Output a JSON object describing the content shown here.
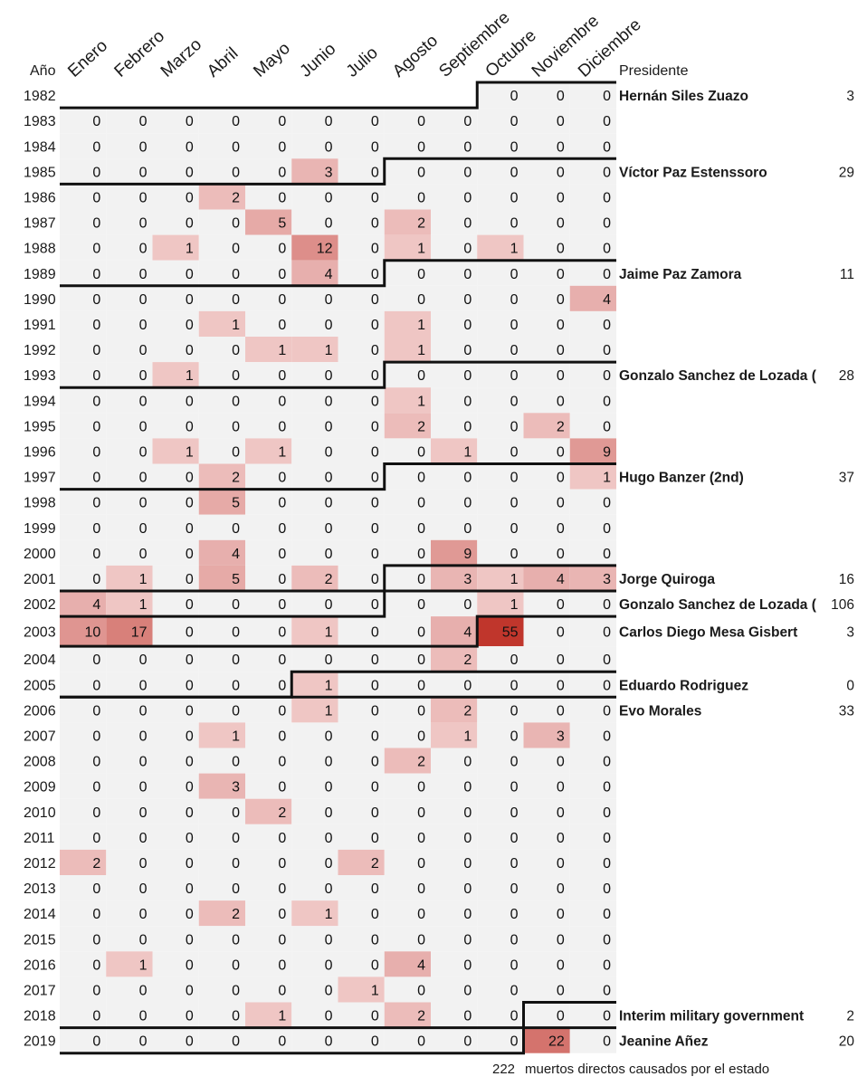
{
  "chart_data": {
    "type": "heatmap",
    "year_header": "Año",
    "president_header": "Presidente",
    "months": [
      "Enero",
      "Febrero",
      "Marzo",
      "Abril",
      "Mayo",
      "Junio",
      "Julio",
      "Agosto",
      "Septiembre",
      "Octubre",
      "Noviembre",
      "Diciembre"
    ],
    "years": [
      "1982",
      "1983",
      "1984",
      "1985",
      "1986",
      "1987",
      "1988",
      "1989",
      "1990",
      "1991",
      "1992",
      "1993",
      "1994",
      "1995",
      "1996",
      "1997",
      "1998",
      "1999",
      "2000",
      "2001",
      "2002",
      "2003",
      "2004",
      "2005",
      "2006",
      "2007",
      "2008",
      "2009",
      "2010",
      "2011",
      "2012",
      "2013",
      "2014",
      "2015",
      "2016",
      "2017",
      "2018",
      "2019"
    ],
    "values": [
      [
        null,
        null,
        null,
        null,
        null,
        null,
        null,
        null,
        null,
        0,
        0,
        0
      ],
      [
        0,
        0,
        0,
        0,
        0,
        0,
        0,
        0,
        0,
        0,
        0,
        0
      ],
      [
        0,
        0,
        0,
        0,
        0,
        0,
        0,
        0,
        0,
        0,
        0,
        0
      ],
      [
        0,
        0,
        0,
        0,
        0,
        3,
        0,
        0,
        0,
        0,
        0,
        0
      ],
      [
        0,
        0,
        0,
        2,
        0,
        0,
        0,
        0,
        0,
        0,
        0,
        0
      ],
      [
        0,
        0,
        0,
        0,
        5,
        0,
        0,
        2,
        0,
        0,
        0,
        0
      ],
      [
        0,
        0,
        1,
        0,
        0,
        12,
        0,
        1,
        0,
        1,
        0,
        0
      ],
      [
        0,
        0,
        0,
        0,
        0,
        4,
        0,
        0,
        0,
        0,
        0,
        0
      ],
      [
        0,
        0,
        0,
        0,
        0,
        0,
        0,
        0,
        0,
        0,
        0,
        4
      ],
      [
        0,
        0,
        0,
        1,
        0,
        0,
        0,
        1,
        0,
        0,
        0,
        0
      ],
      [
        0,
        0,
        0,
        0,
        1,
        1,
        0,
        1,
        0,
        0,
        0,
        0
      ],
      [
        0,
        0,
        1,
        0,
        0,
        0,
        0,
        0,
        0,
        0,
        0,
        0
      ],
      [
        0,
        0,
        0,
        0,
        0,
        0,
        0,
        1,
        0,
        0,
        0,
        0
      ],
      [
        0,
        0,
        0,
        0,
        0,
        0,
        0,
        2,
        0,
        0,
        2,
        0
      ],
      [
        0,
        0,
        1,
        0,
        1,
        0,
        0,
        0,
        1,
        0,
        0,
        9
      ],
      [
        0,
        0,
        0,
        2,
        0,
        0,
        0,
        0,
        0,
        0,
        0,
        1
      ],
      [
        0,
        0,
        0,
        5,
        0,
        0,
        0,
        0,
        0,
        0,
        0,
        0
      ],
      [
        0,
        0,
        0,
        0,
        0,
        0,
        0,
        0,
        0,
        0,
        0,
        0
      ],
      [
        0,
        0,
        0,
        4,
        0,
        0,
        0,
        0,
        9,
        0,
        0,
        0
      ],
      [
        0,
        1,
        0,
        5,
        0,
        2,
        0,
        0,
        3,
        1,
        4,
        3
      ],
      [
        4,
        1,
        0,
        0,
        0,
        0,
        0,
        0,
        0,
        1,
        0,
        0
      ],
      [
        10,
        17,
        0,
        0,
        0,
        1,
        0,
        0,
        4,
        55,
        0,
        0
      ],
      [
        0,
        0,
        0,
        0,
        0,
        0,
        0,
        0,
        2,
        0,
        0,
        0
      ],
      [
        0,
        0,
        0,
        0,
        0,
        1,
        0,
        0,
        0,
        0,
        0,
        0
      ],
      [
        0,
        0,
        0,
        0,
        0,
        1,
        0,
        0,
        2,
        0,
        0,
        0
      ],
      [
        0,
        0,
        0,
        1,
        0,
        0,
        0,
        0,
        1,
        0,
        3,
        0
      ],
      [
        0,
        0,
        0,
        0,
        0,
        0,
        0,
        2,
        0,
        0,
        0,
        0
      ],
      [
        0,
        0,
        0,
        3,
        0,
        0,
        0,
        0,
        0,
        0,
        0,
        0
      ],
      [
        0,
        0,
        0,
        0,
        2,
        0,
        0,
        0,
        0,
        0,
        0,
        0
      ],
      [
        0,
        0,
        0,
        0,
        0,
        0,
        0,
        0,
        0,
        0,
        0,
        0
      ],
      [
        2,
        0,
        0,
        0,
        0,
        0,
        2,
        0,
        0,
        0,
        0,
        0
      ],
      [
        0,
        0,
        0,
        0,
        0,
        0,
        0,
        0,
        0,
        0,
        0,
        0
      ],
      [
        0,
        0,
        0,
        2,
        0,
        1,
        0,
        0,
        0,
        0,
        0,
        0
      ],
      [
        0,
        0,
        0,
        0,
        0,
        0,
        0,
        0,
        0,
        0,
        0,
        0
      ],
      [
        0,
        1,
        0,
        0,
        0,
        0,
        0,
        4,
        0,
        0,
        0,
        0
      ],
      [
        0,
        0,
        0,
        0,
        0,
        0,
        1,
        0,
        0,
        0,
        0,
        0
      ],
      [
        0,
        0,
        0,
        0,
        1,
        0,
        0,
        2,
        0,
        0,
        0,
        0
      ],
      [
        0,
        0,
        0,
        0,
        0,
        0,
        0,
        0,
        0,
        0,
        22,
        0
      ]
    ],
    "presidents": [
      {
        "name": "Hernán Siles Zuazo",
        "total": "3",
        "year": "1982",
        "start_month": "Octubre"
      },
      {
        "name": "Víctor Paz Estenssoro",
        "total": "29",
        "year": "1985",
        "start_month": "Agosto"
      },
      {
        "name": "Jaime Paz Zamora",
        "total": "11",
        "year": "1989",
        "start_month": "Agosto"
      },
      {
        "name": "Gonzalo Sanchez de Lozada (",
        "total": "28",
        "year": "1993",
        "start_month": "Agosto"
      },
      {
        "name": "Hugo Banzer (2nd)",
        "total": "37",
        "year": "1997",
        "start_month": "Agosto"
      },
      {
        "name": "Jorge Quiroga",
        "total": "16",
        "year": "2001",
        "start_month": "Agosto"
      },
      {
        "name": "Gonzalo Sanchez de Lozada (",
        "total": "106",
        "year": "2002",
        "start_month": "Agosto"
      },
      {
        "name": "Carlos Diego Mesa Gisbert",
        "total": "3",
        "year": "2003",
        "start_month": "Octubre"
      },
      {
        "name": "Eduardo Rodriguez",
        "total": "0",
        "year": "2005",
        "start_month": "Junio"
      },
      {
        "name": "Evo Morales",
        "total": "33",
        "year": "2006",
        "start_month": "Enero"
      },
      {
        "name": "Interim military government",
        "total": "2",
        "year": "2018",
        "start_month": "Noviembre"
      },
      {
        "name": "Jeanine Añez",
        "total": "20",
        "year": "2019",
        "start_month": "Noviembre"
      }
    ],
    "footnote_total": "222",
    "footnote_text": "muertos directos causados por el estado",
    "color_scale": {
      "empty": "#f2f2f2",
      "low": "#f6dcdc",
      "max": "#c0362c"
    },
    "grid": false,
    "legend": "none"
  }
}
